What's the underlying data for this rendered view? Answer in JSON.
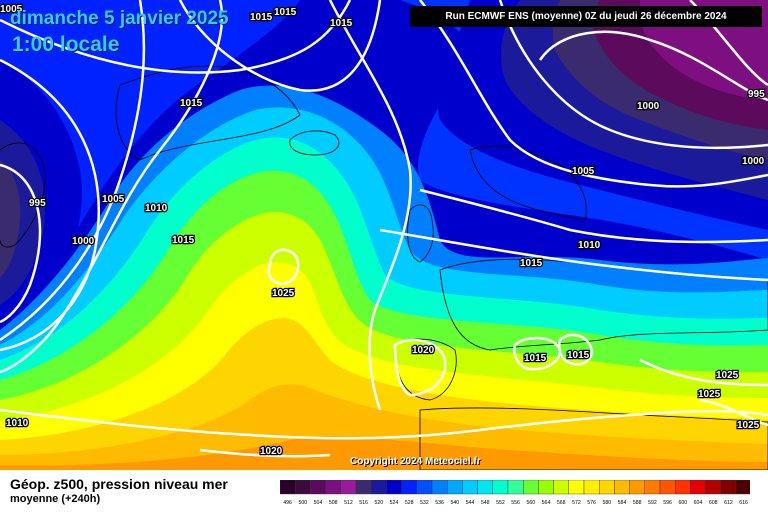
{
  "header": {
    "date": "dimanche 5 janvier 2025",
    "time": "1:00 locale",
    "run": "Run ECMWF ENS (moyenne) 0Z du jeudi 26 décembre 2024"
  },
  "copyright": "Copyright 2024 Meteociel.fr",
  "caption": {
    "line1": "Géop. z500, pression niveau mer",
    "line2": "moyenne   (+240h)"
  },
  "isobar_labels": [
    "1005",
    "1015",
    "1015",
    "1015",
    "995",
    "1015",
    "1000",
    "995",
    "1005",
    "1010",
    "1000",
    "1000",
    "1005",
    "1010",
    "1015",
    "1025",
    "1015",
    "1020",
    "1015",
    "1015",
    "1025",
    "1025",
    "1025",
    "1010",
    "1020"
  ],
  "scale": {
    "labels": [
      "496",
      "500",
      "504",
      "508",
      "512",
      "516",
      "520",
      "524",
      "528",
      "532",
      "536",
      "540",
      "544",
      "548",
      "552",
      "556",
      "560",
      "564",
      "568",
      "572",
      "576",
      "580",
      "584",
      "588",
      "592",
      "596",
      "600",
      "604",
      "608",
      "612",
      "616"
    ],
    "colors": [
      "#2a002a",
      "#3d0a3d",
      "#5c0a5c",
      "#7d0f80",
      "#9a1a9a",
      "#3a2a6e",
      "#1a1a9a",
      "#0000cd",
      "#0022ff",
      "#0050ff",
      "#0080ff",
      "#00a8ff",
      "#00ccff",
      "#00e5ee",
      "#00ffcc",
      "#33ff99",
      "#66ff33",
      "#99ff00",
      "#ccff00",
      "#ffff00",
      "#ffee00",
      "#ffd500",
      "#ffbb00",
      "#ff9900",
      "#ff7a00",
      "#ff5500",
      "#ff3300",
      "#e60000",
      "#b30000",
      "#800000",
      "#4d0000"
    ]
  }
}
